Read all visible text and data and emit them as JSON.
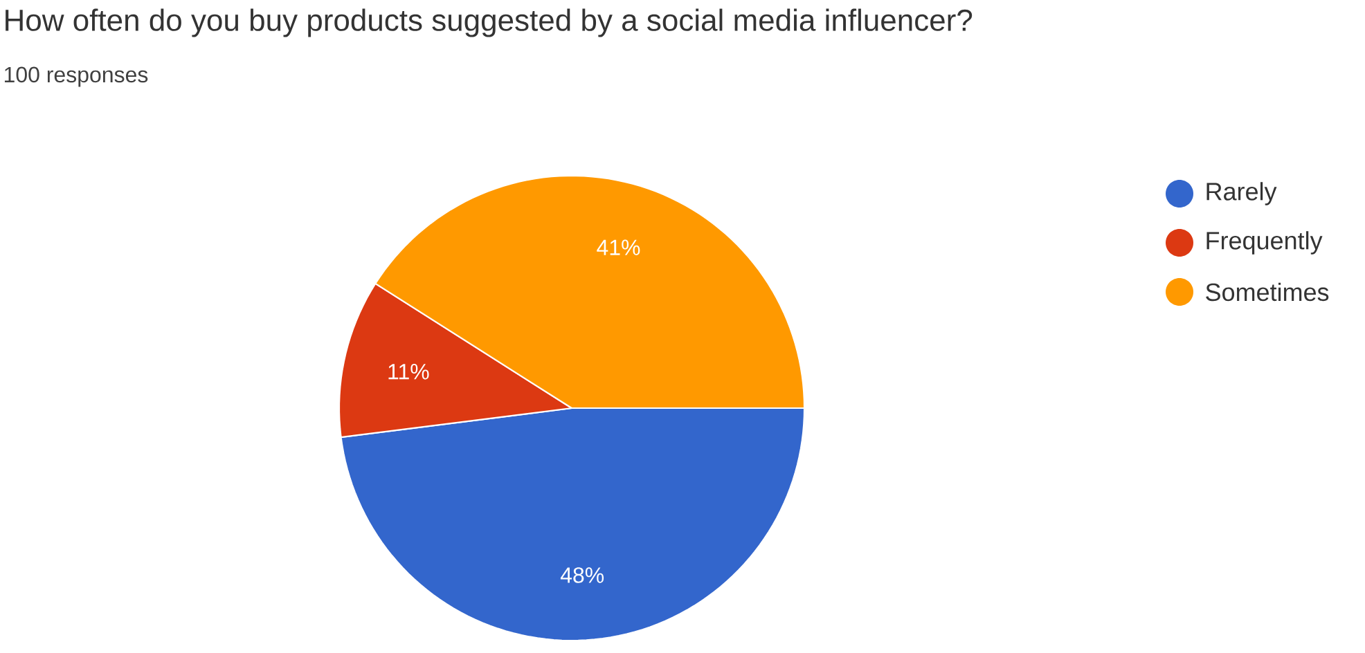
{
  "chart_data": {
    "type": "pie",
    "title": "How often do you buy products suggested by a social media influencer?",
    "subtitle": "100 responses",
    "categories": [
      "Rarely",
      "Frequently",
      "Sometimes"
    ],
    "values": [
      48,
      11,
      41
    ],
    "value_labels": [
      "48%",
      "11%",
      "41%"
    ],
    "colors": [
      "#3366cc",
      "#dc3912",
      "#ff9900"
    ],
    "legend": "right"
  }
}
